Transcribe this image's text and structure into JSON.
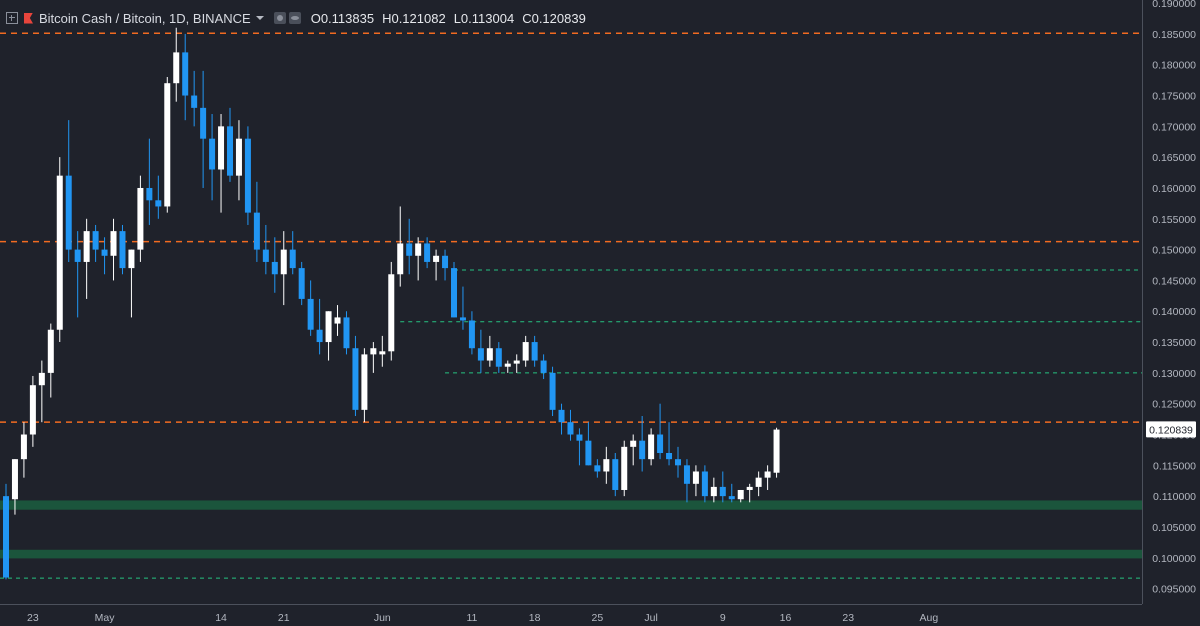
{
  "header": {
    "title": "Bitcoin Cash / Bitcoin, 1D, BINANCE",
    "ohlc": [
      "O0.113835",
      "H0.121082",
      "L0.113004",
      "C0.120839"
    ]
  },
  "colors": {
    "background": "#1f222b",
    "bull": "#ffffff",
    "bear": "#2196f3",
    "resistance": "#f26b21",
    "support": "#26c281",
    "zone": "#1b5e40"
  },
  "chart_data": {
    "type": "candlestick",
    "symbol": "BCH/BTC",
    "ylim": [
      0.0925,
      0.1905
    ],
    "y_ticks": [
      "0.095000",
      "0.100000",
      "0.105000",
      "0.110000",
      "0.115000",
      "0.120000",
      "0.125000",
      "0.130000",
      "0.135000",
      "0.140000",
      "0.145000",
      "0.150000",
      "0.155000",
      "0.160000",
      "0.165000",
      "0.170000",
      "0.175000",
      "0.180000",
      "0.185000",
      "0.190000"
    ],
    "x_ticks": [
      {
        "label": "23",
        "bar": 3
      },
      {
        "label": "May",
        "bar": 11
      },
      {
        "label": "14",
        "bar": 24
      },
      {
        "label": "21",
        "bar": 31
      },
      {
        "label": "Jun",
        "bar": 42
      },
      {
        "label": "11",
        "bar": 52
      },
      {
        "label": "18",
        "bar": 59
      },
      {
        "label": "25",
        "bar": 66
      },
      {
        "label": "Jul",
        "bar": 72
      },
      {
        "label": "9",
        "bar": 80
      },
      {
        "label": "16",
        "bar": 87
      },
      {
        "label": "23",
        "bar": 94
      },
      {
        "label": "Aug",
        "bar": 103
      }
    ],
    "last_price": "0.120839",
    "resistance_levels": [
      0.1851,
      0.1513,
      0.122
    ],
    "support_levels": [
      0.1467,
      0.1383,
      0.13,
      0.0967
    ],
    "zones": [
      [
        0.1078,
        0.1093
      ],
      [
        0.0999,
        0.1013
      ]
    ],
    "ohlc": [
      [
        0.11,
        0.112,
        0.0965,
        0.0968
      ],
      [
        0.1095,
        0.116,
        0.107,
        0.116
      ],
      [
        0.116,
        0.122,
        0.113,
        0.12
      ],
      [
        0.12,
        0.1295,
        0.118,
        0.128
      ],
      [
        0.128,
        0.132,
        0.122,
        0.13
      ],
      [
        0.13,
        0.138,
        0.126,
        0.137
      ],
      [
        0.137,
        0.165,
        0.135,
        0.162
      ],
      [
        0.162,
        0.171,
        0.148,
        0.15
      ],
      [
        0.15,
        0.153,
        0.139,
        0.148
      ],
      [
        0.148,
        0.155,
        0.142,
        0.153
      ],
      [
        0.153,
        0.154,
        0.148,
        0.15
      ],
      [
        0.15,
        0.152,
        0.146,
        0.149
      ],
      [
        0.149,
        0.155,
        0.145,
        0.153
      ],
      [
        0.153,
        0.154,
        0.146,
        0.147
      ],
      [
        0.147,
        0.15,
        0.139,
        0.15
      ],
      [
        0.15,
        0.162,
        0.148,
        0.16
      ],
      [
        0.16,
        0.168,
        0.154,
        0.158
      ],
      [
        0.158,
        0.162,
        0.155,
        0.157
      ],
      [
        0.157,
        0.178,
        0.156,
        0.177
      ],
      [
        0.177,
        0.186,
        0.174,
        0.182
      ],
      [
        0.182,
        0.185,
        0.171,
        0.175
      ],
      [
        0.175,
        0.179,
        0.17,
        0.173
      ],
      [
        0.173,
        0.179,
        0.16,
        0.168
      ],
      [
        0.168,
        0.172,
        0.158,
        0.163
      ],
      [
        0.163,
        0.172,
        0.156,
        0.17
      ],
      [
        0.17,
        0.173,
        0.161,
        0.162
      ],
      [
        0.162,
        0.171,
        0.158,
        0.168
      ],
      [
        0.168,
        0.17,
        0.154,
        0.156
      ],
      [
        0.156,
        0.161,
        0.148,
        0.15
      ],
      [
        0.15,
        0.154,
        0.146,
        0.148
      ],
      [
        0.148,
        0.152,
        0.143,
        0.146
      ],
      [
        0.146,
        0.153,
        0.141,
        0.15
      ],
      [
        0.15,
        0.153,
        0.146,
        0.147
      ],
      [
        0.147,
        0.148,
        0.141,
        0.142
      ],
      [
        0.142,
        0.145,
        0.136,
        0.137
      ],
      [
        0.137,
        0.142,
        0.133,
        0.135
      ],
      [
        0.135,
        0.14,
        0.132,
        0.14
      ],
      [
        0.138,
        0.141,
        0.136,
        0.139
      ],
      [
        0.139,
        0.14,
        0.133,
        0.134
      ],
      [
        0.134,
        0.136,
        0.123,
        0.124
      ],
      [
        0.124,
        0.134,
        0.122,
        0.133
      ],
      [
        0.133,
        0.135,
        0.13,
        0.134
      ],
      [
        0.133,
        0.136,
        0.131,
        0.1335
      ],
      [
        0.1335,
        0.148,
        0.132,
        0.146
      ],
      [
        0.146,
        0.157,
        0.144,
        0.151
      ],
      [
        0.151,
        0.155,
        0.146,
        0.149
      ],
      [
        0.149,
        0.152,
        0.145,
        0.151
      ],
      [
        0.151,
        0.152,
        0.147,
        0.148
      ],
      [
        0.148,
        0.15,
        0.145,
        0.149
      ],
      [
        0.149,
        0.15,
        0.145,
        0.147
      ],
      [
        0.147,
        0.148,
        0.139,
        0.139
      ],
      [
        0.139,
        0.144,
        0.137,
        0.1385
      ],
      [
        0.1385,
        0.14,
        0.133,
        0.134
      ],
      [
        0.134,
        0.137,
        0.13,
        0.132
      ],
      [
        0.132,
        0.136,
        0.131,
        0.134
      ],
      [
        0.134,
        0.135,
        0.13,
        0.131
      ],
      [
        0.131,
        0.132,
        0.13,
        0.1315
      ],
      [
        0.1315,
        0.133,
        0.13,
        0.132
      ],
      [
        0.132,
        0.136,
        0.131,
        0.135
      ],
      [
        0.135,
        0.136,
        0.131,
        0.132
      ],
      [
        0.132,
        0.133,
        0.129,
        0.13
      ],
      [
        0.13,
        0.131,
        0.123,
        0.124
      ],
      [
        0.124,
        0.125,
        0.12,
        0.122
      ],
      [
        0.122,
        0.124,
        0.119,
        0.12
      ],
      [
        0.12,
        0.121,
        0.115,
        0.119
      ],
      [
        0.119,
        0.122,
        0.115,
        0.115
      ],
      [
        0.115,
        0.116,
        0.113,
        0.114
      ],
      [
        0.114,
        0.118,
        0.112,
        0.116
      ],
      [
        0.116,
        0.117,
        0.11,
        0.111
      ],
      [
        0.111,
        0.119,
        0.11,
        0.118
      ],
      [
        0.118,
        0.12,
        0.115,
        0.119
      ],
      [
        0.119,
        0.123,
        0.114,
        0.116
      ],
      [
        0.116,
        0.121,
        0.115,
        0.12
      ],
      [
        0.12,
        0.125,
        0.116,
        0.117
      ],
      [
        0.117,
        0.122,
        0.115,
        0.116
      ],
      [
        0.116,
        0.118,
        0.113,
        0.115
      ],
      [
        0.115,
        0.116,
        0.109,
        0.112
      ],
      [
        0.112,
        0.115,
        0.11,
        0.114
      ],
      [
        0.114,
        0.115,
        0.109,
        0.11
      ],
      [
        0.11,
        0.113,
        0.109,
        0.1115
      ],
      [
        0.1115,
        0.114,
        0.109,
        0.11
      ],
      [
        0.11,
        0.112,
        0.109,
        0.1095
      ],
      [
        0.1095,
        0.111,
        0.109,
        0.111
      ],
      [
        0.111,
        0.112,
        0.109,
        0.1115
      ],
      [
        0.1115,
        0.114,
        0.11,
        0.113
      ],
      [
        0.113,
        0.115,
        0.111,
        0.114
      ],
      [
        0.1138,
        0.1211,
        0.113,
        0.1208
      ]
    ]
  }
}
